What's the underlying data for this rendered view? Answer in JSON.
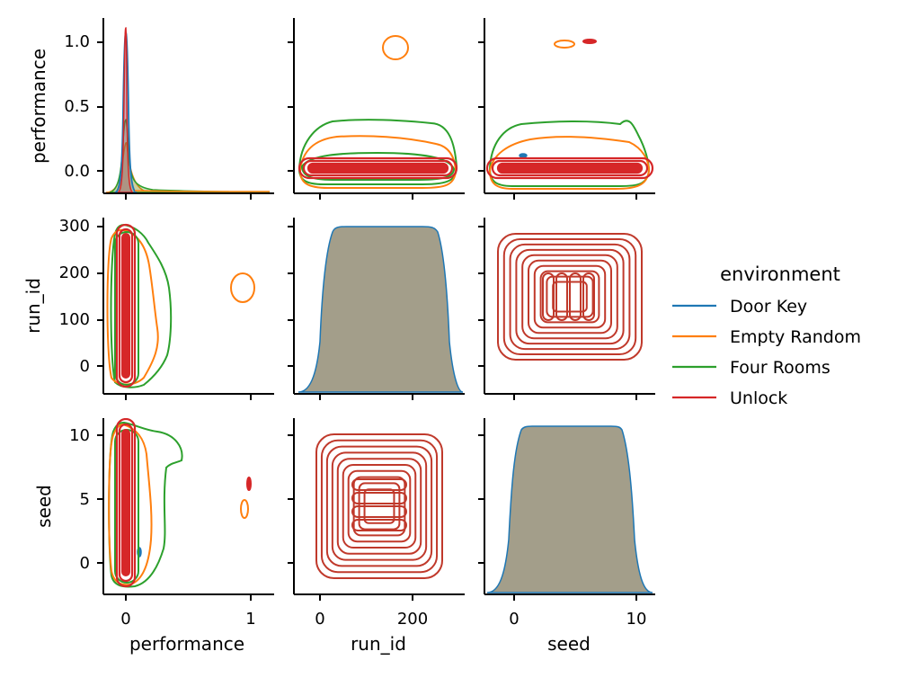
{
  "chart_data": {
    "type": "kde-pairplot",
    "variables": [
      "performance",
      "run_id",
      "seed"
    ],
    "hue": "environment",
    "legend": {
      "title": "environment",
      "placement": "right",
      "entries": [
        {
          "name": "Door Key",
          "color": "#1f77b4"
        },
        {
          "name": "Empty Random",
          "color": "#ff7f0e"
        },
        {
          "name": "Four Rooms",
          "color": "#2ca02c"
        },
        {
          "name": "Unlock",
          "color": "#d62728"
        }
      ]
    },
    "axes": {
      "performance": {
        "label": "performance",
        "range": [
          -0.19,
          1.19
        ],
        "diag_range": [
          -0.22,
          1.19
        ],
        "ticks_y": [
          "0.0",
          "0.5",
          "1.0"
        ],
        "ticks_x": [
          "0",
          "1"
        ]
      },
      "run_id": {
        "label": "run_id",
        "range": [
          -55,
          315
        ],
        "ticks_y": [
          "0",
          "100",
          "200",
          "300"
        ],
        "ticks_x": [
          "0",
          "200"
        ]
      },
      "seed": {
        "label": "seed",
        "range": [
          -2.3,
          11.3
        ],
        "ticks_y": [
          "0",
          "5",
          "10"
        ],
        "ticks_x": [
          "0",
          "10"
        ]
      }
    },
    "grid": false,
    "diagonal": {
      "performance": {
        "type": "kde-fill",
        "peak_x": 0.0,
        "peaks": {
          "Door Key": 1.07,
          "Empty Random": 0.27,
          "Four Rooms": 0.38,
          "Unlock": 1.1
        },
        "secondary_bump_x": 1.0
      },
      "run_id": {
        "type": "kde-fill",
        "plateau": [
          20,
          230
        ],
        "support": [
          -40,
          290
        ],
        "fill": "#a39e8a",
        "line": "#1f77b4"
      },
      "seed": {
        "type": "kde-fill",
        "plateau": [
          0.3,
          9.3
        ],
        "support": [
          -2.2,
          11.2
        ],
        "fill": "#a39e8a",
        "line": "#1f77b4"
      }
    },
    "off_diagonal": {
      "performance_vs_run_id": {
        "x": "performance",
        "y": "run_id",
        "density_center": {
          "performance": 0.0,
          "run_id": 130
        },
        "secondary_mode": {
          "environment": "Empty Random",
          "performance": 0.97,
          "run_id": 170
        }
      },
      "performance_vs_seed": {
        "x": "performance",
        "y": "seed",
        "density_center": {
          "performance": 0.0,
          "seed": 5
        },
        "secondary_modes": [
          {
            "environment": "Unlock",
            "performance": 1.0,
            "seed": 6.2
          },
          {
            "environment": "Empty Random",
            "performance": 0.97,
            "seed": 4.1
          },
          {
            "environment": "Door Key",
            "performance": 0.1,
            "seed": 0.8
          }
        ]
      },
      "run_id_vs_performance": {
        "x": "run_id",
        "y": "performance",
        "density_center": {
          "run_id": 130,
          "performance": 0.0
        },
        "secondary_mode": {
          "environment": "Empty Random",
          "run_id": 165,
          "performance": 0.97
        }
      },
      "seed_vs_performance": {
        "x": "seed",
        "y": "performance",
        "density_center": {
          "seed": 5,
          "performance": 0.0
        },
        "secondary_modes": [
          {
            "environment": "Unlock",
            "seed": 6.2,
            "performance": 1.0
          },
          {
            "environment": "Empty Random",
            "seed": 4.1,
            "performance": 0.97
          },
          {
            "environment": "Door Key",
            "seed": 0.8,
            "performance": 0.12
          }
        ]
      },
      "run_id_vs_seed": {
        "x": "run_id",
        "y": "seed",
        "type": "concentric-contours",
        "center": {
          "run_id": 130,
          "seed": 5
        },
        "levels": 10
      },
      "seed_vs_run_id": {
        "x": "seed",
        "y": "run_id",
        "type": "concentric-contours",
        "center": {
          "seed": 5,
          "run_id": 130
        },
        "levels": 10
      }
    }
  }
}
